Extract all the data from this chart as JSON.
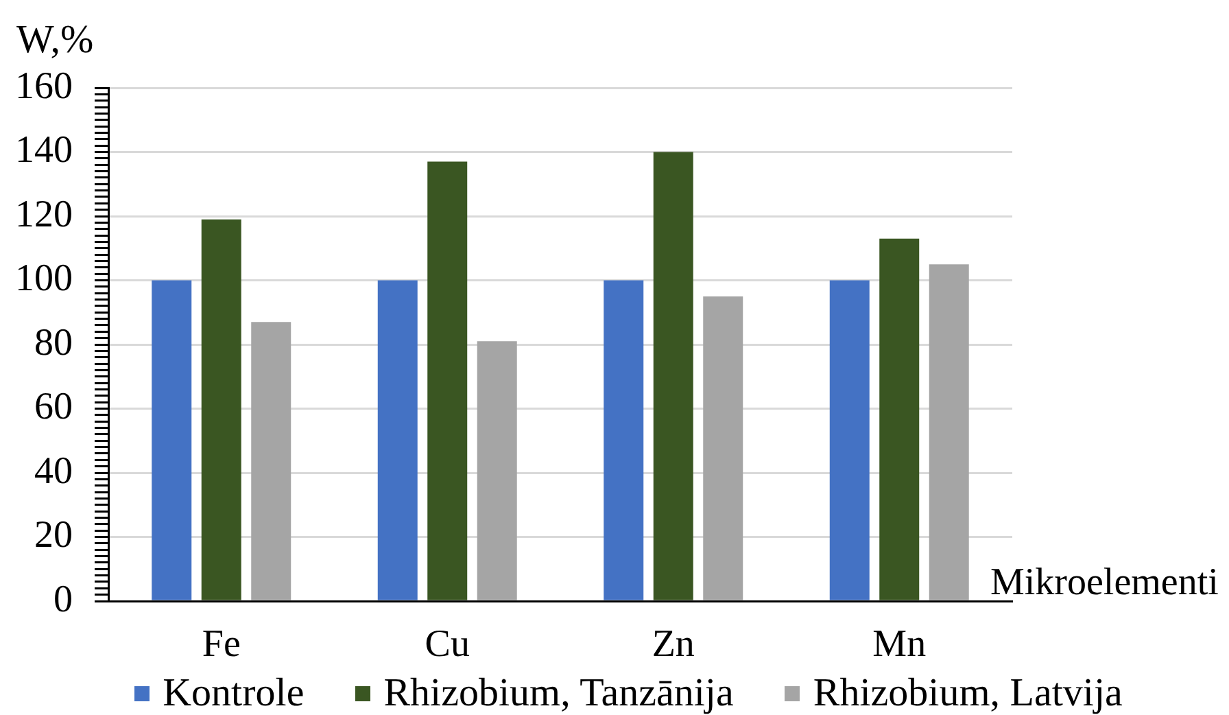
{
  "chart_data": {
    "type": "bar",
    "xlabel": "Mikroelementi",
    "ylabel": "W,%",
    "categories": [
      "Fe",
      "Cu",
      "Zn",
      "Mn"
    ],
    "series": [
      {
        "name": "Kontrole",
        "color": "#4472c4",
        "values": [
          100,
          100,
          100,
          100
        ]
      },
      {
        "name": "Rhizobium, Tanzānija",
        "color": "#3a5622",
        "values": [
          119,
          137,
          140,
          113
        ]
      },
      {
        "name": "Rhizobium, Latvija",
        "color": "#a5a5a5",
        "values": [
          87,
          81,
          95,
          105
        ]
      }
    ],
    "ylim": [
      0,
      160
    ],
    "yticks": [
      0,
      {
        "value": 2,
        "label": null
      },
      {
        "value": 4,
        "label": null
      },
      {
        "value": 6,
        "label": null
      },
      {
        "value": 8,
        "label": null
      },
      {
        "value": 10,
        "label": null
      },
      {
        "value": 12,
        "label": null
      },
      {
        "value": 14,
        "label": null
      },
      {
        "value": 16,
        "label": null
      },
      {
        "value": 18,
        "label": null
      },
      20,
      {
        "value": 22,
        "label": null
      },
      {
        "value": 24,
        "label": null
      },
      {
        "value": 26,
        "label": null
      },
      {
        "value": 28,
        "label": null
      },
      {
        "value": 30,
        "label": null
      },
      {
        "value": 32,
        "label": null
      },
      {
        "value": 34,
        "label": null
      },
      {
        "value": 36,
        "label": null
      },
      {
        "value": 38,
        "label": null
      },
      40,
      {
        "value": 42,
        "label": null
      },
      {
        "value": 44,
        "label": null
      },
      {
        "value": 46,
        "label": null
      },
      {
        "value": 48,
        "label": null
      },
      {
        "value": 50,
        "label": null
      },
      {
        "value": 52,
        "label": null
      },
      {
        "value": 54,
        "label": null
      },
      {
        "value": 56,
        "label": null
      },
      {
        "value": 58,
        "label": null
      },
      60,
      {
        "value": 62,
        "label": null
      },
      {
        "value": 64,
        "label": null
      },
      {
        "value": 66,
        "label": null
      },
      {
        "value": 68,
        "label": null
      },
      {
        "value": 70,
        "label": null
      },
      {
        "value": 72,
        "label": null
      },
      {
        "value": 74,
        "label": null
      },
      {
        "value": 76,
        "label": null
      },
      {
        "value": 78,
        "label": null
      },
      80,
      {
        "value": 82,
        "label": null
      },
      {
        "value": 84,
        "label": null
      },
      {
        "value": 86,
        "label": null
      },
      {
        "value": 88,
        "label": null
      },
      {
        "value": 90,
        "label": null
      },
      {
        "value": 92,
        "label": null
      },
      {
        "value": 94,
        "label": null
      },
      {
        "value": 96,
        "label": null
      },
      {
        "value": 98,
        "label": null
      },
      100,
      {
        "value": 102,
        "label": null
      },
      {
        "value": 104,
        "label": null
      },
      {
        "value": 106,
        "label": null
      },
      {
        "value": 108,
        "label": null
      },
      {
        "value": 110,
        "label": null
      },
      {
        "value": 112,
        "label": null
      },
      {
        "value": 114,
        "label": null
      },
      {
        "value": 116,
        "label": null
      },
      {
        "value": 118,
        "label": null
      },
      120,
      {
        "value": 122,
        "label": null
      },
      {
        "value": 124,
        "label": null
      },
      {
        "value": 126,
        "label": null
      },
      {
        "value": 128,
        "label": null
      },
      {
        "value": 130,
        "label": null
      },
      {
        "value": 132,
        "label": null
      },
      {
        "value": 134,
        "label": null
      },
      {
        "value": 136,
        "label": null
      },
      {
        "value": 138,
        "label": null
      },
      140,
      {
        "value": 142,
        "label": null
      },
      {
        "value": 144,
        "label": null
      },
      {
        "value": 146,
        "label": null
      },
      {
        "value": 148,
        "label": null
      },
      {
        "value": 150,
        "label": null
      },
      {
        "value": 152,
        "label": null
      },
      {
        "value": 154,
        "label": null
      },
      {
        "value": 156,
        "label": null
      },
      {
        "value": 158,
        "label": null
      },
      160
    ],
    "grid": "y",
    "legend": "bottom"
  }
}
